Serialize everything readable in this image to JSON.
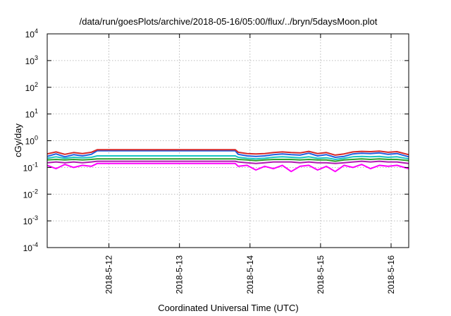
{
  "chart_data": {
    "type": "line",
    "title": "/data/run/goesPlots/archive/2018-05-16/05:00/flux/../bryn/5daysMoon.plot",
    "xlabel": "Coordinated Universal Time (UTC)",
    "ylabel": "cGy/day",
    "y_scale": "log",
    "ylim": [
      0.0001,
      10000
    ],
    "xlim": [
      "2018-05-11 03:00",
      "2018-05-16 06:00"
    ],
    "grid": true,
    "legend": "none",
    "x_ticks": [
      "2018-5-12",
      "2018-5-13",
      "2018-5-14",
      "2018-5-15",
      "2018-5-16"
    ],
    "y_ticks": [
      {
        "base": "10",
        "exp": "-4",
        "value": 0.0001
      },
      {
        "base": "10",
        "exp": "-3",
        "value": 0.001
      },
      {
        "base": "10",
        "exp": "-2",
        "value": 0.01
      },
      {
        "base": "10",
        "exp": "-1",
        "value": 0.1
      },
      {
        "base": "10",
        "exp": "0",
        "value": 1
      },
      {
        "base": "10",
        "exp": "1",
        "value": 10
      },
      {
        "base": "10",
        "exp": "2",
        "value": 100
      },
      {
        "base": "10",
        "exp": "3",
        "value": 1000
      },
      {
        "base": "10",
        "exp": "4",
        "value": 10000
      }
    ],
    "x": [
      "2018-05-11 03:00",
      "2018-05-11 06:00",
      "2018-05-11 09:00",
      "2018-05-11 12:00",
      "2018-05-11 15:00",
      "2018-05-11 18:00",
      "2018-05-11 20:00",
      "2018-05-13 19:00",
      "2018-05-13 20:00",
      "2018-05-13 23:00",
      "2018-05-14 02:00",
      "2018-05-14 05:00",
      "2018-05-14 08:00",
      "2018-05-14 11:00",
      "2018-05-14 14:00",
      "2018-05-14 17:00",
      "2018-05-14 20:00",
      "2018-05-14 23:00",
      "2018-05-15 02:00",
      "2018-05-15 05:00",
      "2018-05-15 08:00",
      "2018-05-15 11:00",
      "2018-05-15 14:00",
      "2018-05-15 17:00",
      "2018-05-15 20:00",
      "2018-05-15 23:00",
      "2018-05-16 02:00",
      "2018-05-16 06:00"
    ],
    "series": [
      {
        "color": "#d62728",
        "values": [
          0.32,
          0.38,
          0.31,
          0.36,
          0.33,
          0.37,
          0.46,
          0.46,
          0.37,
          0.33,
          0.32,
          0.33,
          0.36,
          0.38,
          0.36,
          0.35,
          0.4,
          0.33,
          0.36,
          0.29,
          0.32,
          0.38,
          0.4,
          0.39,
          0.41,
          0.37,
          0.39,
          0.3
        ]
      },
      {
        "color": "#1f5fe0",
        "values": [
          0.26,
          0.32,
          0.25,
          0.3,
          0.27,
          0.31,
          0.42,
          0.42,
          0.31,
          0.27,
          0.26,
          0.27,
          0.3,
          0.32,
          0.3,
          0.29,
          0.34,
          0.27,
          0.3,
          0.24,
          0.26,
          0.32,
          0.34,
          0.33,
          0.35,
          0.31,
          0.33,
          0.25
        ]
      },
      {
        "color": "#19c3c3",
        "values": [
          0.22,
          0.25,
          0.22,
          0.24,
          0.23,
          0.24,
          0.27,
          0.27,
          0.24,
          0.22,
          0.21,
          0.22,
          0.24,
          0.25,
          0.24,
          0.23,
          0.25,
          0.22,
          0.23,
          0.2,
          0.22,
          0.25,
          0.26,
          0.25,
          0.26,
          0.24,
          0.25,
          0.21
        ]
      },
      {
        "color": "#2ca02c",
        "values": [
          0.19,
          0.2,
          0.19,
          0.2,
          0.19,
          0.2,
          0.21,
          0.21,
          0.2,
          0.19,
          0.18,
          0.19,
          0.2,
          0.2,
          0.2,
          0.19,
          0.2,
          0.19,
          0.19,
          0.17,
          0.19,
          0.2,
          0.21,
          0.2,
          0.21,
          0.2,
          0.2,
          0.18
        ]
      },
      {
        "color": "#b01ab0",
        "values": [
          0.15,
          0.16,
          0.15,
          0.16,
          0.15,
          0.16,
          0.17,
          0.17,
          0.16,
          0.15,
          0.14,
          0.15,
          0.16,
          0.16,
          0.16,
          0.15,
          0.16,
          0.15,
          0.15,
          0.14,
          0.15,
          0.16,
          0.17,
          0.16,
          0.17,
          0.16,
          0.16,
          0.14
        ]
      },
      {
        "color": "#ff00ff",
        "values": [
          0.12,
          0.09,
          0.13,
          0.1,
          0.12,
          0.11,
          0.14,
          0.14,
          0.11,
          0.12,
          0.08,
          0.11,
          0.09,
          0.12,
          0.07,
          0.11,
          0.12,
          0.08,
          0.11,
          0.07,
          0.12,
          0.1,
          0.13,
          0.09,
          0.12,
          0.11,
          0.12,
          0.09
        ]
      }
    ]
  }
}
